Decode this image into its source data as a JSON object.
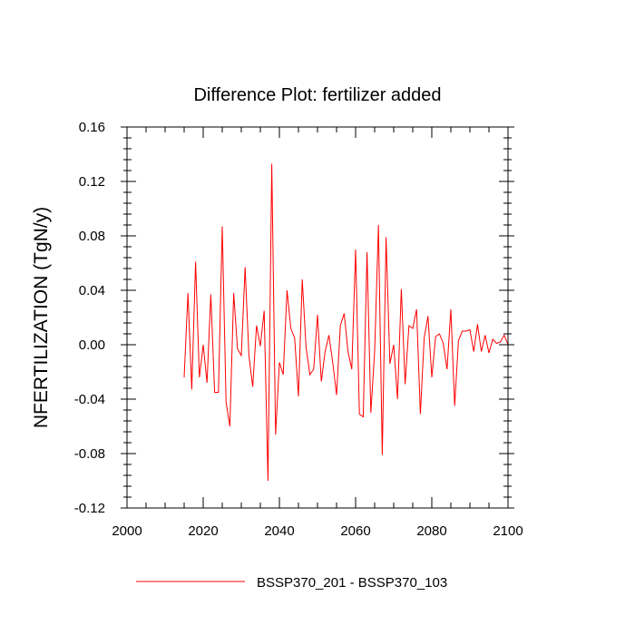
{
  "chart_data": {
    "type": "line",
    "title": "Difference Plot: fertilizer added",
    "xlabel": "",
    "ylabel": "NFERTILIZATION  (TgN/y)",
    "xlim": [
      2000,
      2100
    ],
    "ylim": [
      -0.12,
      0.16
    ],
    "xticks": [
      "2000",
      "2020",
      "2040",
      "2060",
      "2080",
      "2100"
    ],
    "yticks": [
      "-0.12",
      "-0.08",
      "-0.04",
      "0.00",
      "0.04",
      "0.08",
      "0.12",
      "0.16"
    ],
    "legend_position": "bottom",
    "series": [
      {
        "name": "BSSP370_201 - BSSP370_103",
        "color": "#ff0000",
        "x": [
          2015,
          2016,
          2017,
          2018,
          2019,
          2020,
          2021,
          2022,
          2023,
          2024,
          2025,
          2026,
          2027,
          2028,
          2029,
          2030,
          2031,
          2032,
          2033,
          2034,
          2035,
          2036,
          2037,
          2038,
          2039,
          2040,
          2041,
          2042,
          2043,
          2044,
          2045,
          2046,
          2047,
          2048,
          2049,
          2050,
          2051,
          2052,
          2053,
          2054,
          2055,
          2056,
          2057,
          2058,
          2059,
          2060,
          2061,
          2062,
          2063,
          2064,
          2065,
          2066,
          2067,
          2068,
          2069,
          2070,
          2071,
          2072,
          2073,
          2074,
          2075,
          2076,
          2077,
          2078,
          2079,
          2080,
          2081,
          2082,
          2083,
          2084,
          2085,
          2086,
          2087,
          2088,
          2089,
          2090,
          2091,
          2092,
          2093,
          2094,
          2095,
          2096,
          2097,
          2098,
          2099,
          2100
        ],
        "values": [
          -0.024,
          0.038,
          -0.033,
          0.061,
          -0.024,
          0.0,
          -0.028,
          0.037,
          -0.035,
          -0.035,
          0.087,
          -0.042,
          -0.06,
          0.038,
          -0.003,
          -0.008,
          0.057,
          -0.008,
          -0.031,
          0.014,
          -0.001,
          0.025,
          -0.1,
          0.133,
          -0.066,
          -0.013,
          -0.022,
          0.04,
          0.012,
          0.005,
          -0.038,
          0.048,
          -0.002,
          -0.022,
          -0.018,
          0.022,
          -0.027,
          -0.005,
          0.007,
          -0.013,
          -0.037,
          0.014,
          0.023,
          -0.005,
          -0.018,
          0.07,
          -0.051,
          -0.053,
          0.068,
          -0.05,
          -0.005,
          0.088,
          -0.081,
          0.079,
          -0.014,
          0.0,
          -0.04,
          0.041,
          -0.029,
          0.014,
          0.012,
          0.026,
          -0.051,
          0.005,
          0.021,
          -0.024,
          0.006,
          0.008,
          0.001,
          -0.018,
          0.026,
          -0.045,
          0.003,
          0.01,
          0.01,
          0.011,
          -0.005,
          0.015,
          -0.005,
          0.007,
          -0.006,
          0.004,
          0.001,
          0.002,
          0.007,
          0.0
        ]
      }
    ]
  }
}
